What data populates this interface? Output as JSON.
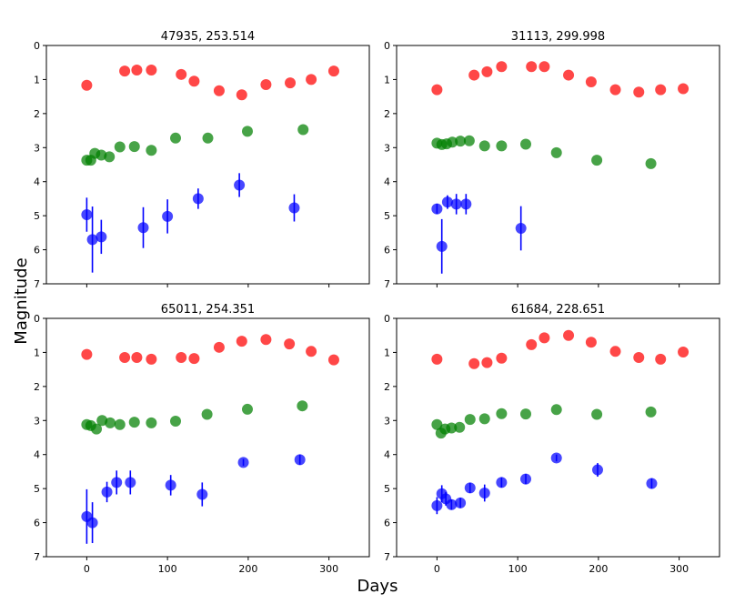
{
  "figure": {
    "xlabel": "Days",
    "ylabel": "Magnitude",
    "colors": {
      "red": "#ff0000",
      "green": "#008000",
      "blue": "#0000ff"
    }
  },
  "chart_data": [
    {
      "type": "scatter",
      "title": "47935, 253.514",
      "xlabel": "Days",
      "ylabel": "Magnitude",
      "xlim": [
        -50,
        350
      ],
      "ylim": [
        7,
        0
      ],
      "y_inverted": true,
      "xticks": [
        0,
        100,
        200,
        300
      ],
      "yticks": [
        0,
        1,
        2,
        3,
        4,
        5,
        6,
        7
      ],
      "series": [
        {
          "name": "red",
          "color": "#ff0000",
          "points": [
            [
              0,
              1.17
            ],
            [
              47,
              0.75
            ],
            [
              62,
              0.72
            ],
            [
              80,
              0.72
            ],
            [
              117,
              0.85
            ],
            [
              133,
              1.05
            ],
            [
              164,
              1.33
            ],
            [
              192,
              1.45
            ],
            [
              222,
              1.15
            ],
            [
              252,
              1.1
            ],
            [
              278,
              1.0
            ],
            [
              306,
              0.75
            ]
          ]
        },
        {
          "name": "green",
          "color": "#008000",
          "points": [
            [
              0,
              3.37
            ],
            [
              5,
              3.37
            ],
            [
              10,
              3.17
            ],
            [
              18,
              3.22
            ],
            [
              28,
              3.27
            ],
            [
              41,
              2.98
            ],
            [
              59,
              2.97
            ],
            [
              80,
              3.08
            ],
            [
              110,
              2.72
            ],
            [
              150,
              2.72
            ],
            [
              199,
              2.52
            ],
            [
              268,
              2.47
            ]
          ]
        },
        {
          "name": "blue",
          "color": "#0000ff",
          "points": [
            [
              0,
              4.97,
              0.5
            ],
            [
              7,
              5.7,
              0.97
            ],
            [
              18,
              5.62,
              0.5
            ],
            [
              70,
              5.35,
              0.6
            ],
            [
              100,
              5.02,
              0.5
            ],
            [
              138,
              4.5,
              0.3
            ],
            [
              189,
              4.1,
              0.35
            ],
            [
              257,
              4.77,
              0.4
            ]
          ]
        }
      ]
    },
    {
      "type": "scatter",
      "title": "31113, 299.998",
      "xlabel": "Days",
      "ylabel": "Magnitude",
      "xlim": [
        -50,
        350
      ],
      "ylim": [
        7,
        0
      ],
      "y_inverted": true,
      "xticks": [
        0,
        100,
        200,
        300
      ],
      "yticks": [
        0,
        1,
        2,
        3,
        4,
        5,
        6,
        7
      ],
      "series": [
        {
          "name": "red",
          "color": "#ff0000",
          "points": [
            [
              0,
              1.3
            ],
            [
              46,
              0.87
            ],
            [
              62,
              0.77
            ],
            [
              80,
              0.62
            ],
            [
              117,
              0.62
            ],
            [
              133,
              0.62
            ],
            [
              163,
              0.87
            ],
            [
              191,
              1.07
            ],
            [
              221,
              1.3
            ],
            [
              250,
              1.37
            ],
            [
              277,
              1.3
            ],
            [
              305,
              1.27
            ]
          ]
        },
        {
          "name": "green",
          "color": "#008000",
          "points": [
            [
              0,
              2.87
            ],
            [
              6,
              2.91
            ],
            [
              12,
              2.89
            ],
            [
              19,
              2.84
            ],
            [
              29,
              2.81
            ],
            [
              40,
              2.8
            ],
            [
              59,
              2.95
            ],
            [
              80,
              2.95
            ],
            [
              110,
              2.9
            ],
            [
              148,
              3.15
            ],
            [
              198,
              3.37
            ],
            [
              265,
              3.47
            ]
          ]
        },
        {
          "name": "blue",
          "color": "#0000ff",
          "points": [
            [
              0,
              4.8,
              0.15
            ],
            [
              6,
              5.9,
              0.8
            ],
            [
              13,
              4.6,
              0.2
            ],
            [
              24,
              4.66,
              0.3
            ],
            [
              36,
              4.66,
              0.3
            ],
            [
              104,
              5.37,
              0.65
            ]
          ]
        }
      ]
    },
    {
      "type": "scatter",
      "title": "65011, 254.351",
      "xlabel": "Days",
      "ylabel": "Magnitude",
      "xlim": [
        -50,
        350
      ],
      "ylim": [
        7,
        0
      ],
      "y_inverted": true,
      "xticks": [
        0,
        100,
        200,
        300
      ],
      "yticks": [
        0,
        1,
        2,
        3,
        4,
        5,
        6,
        7
      ],
      "series": [
        {
          "name": "red",
          "color": "#ff0000",
          "points": [
            [
              0,
              1.06
            ],
            [
              47,
              1.15
            ],
            [
              62,
              1.15
            ],
            [
              80,
              1.2
            ],
            [
              117,
              1.15
            ],
            [
              133,
              1.18
            ],
            [
              164,
              0.85
            ],
            [
              192,
              0.67
            ],
            [
              222,
              0.62
            ],
            [
              251,
              0.75
            ],
            [
              278,
              0.97
            ],
            [
              306,
              1.22
            ]
          ]
        },
        {
          "name": "green",
          "color": "#008000",
          "points": [
            [
              0,
              3.12
            ],
            [
              5,
              3.15
            ],
            [
              12,
              3.25
            ],
            [
              19,
              3.0
            ],
            [
              29,
              3.07
            ],
            [
              41,
              3.12
            ],
            [
              59,
              3.05
            ],
            [
              80,
              3.07
            ],
            [
              110,
              3.02
            ],
            [
              149,
              2.82
            ],
            [
              199,
              2.67
            ],
            [
              267,
              2.57
            ]
          ]
        },
        {
          "name": "blue",
          "color": "#0000ff",
          "points": [
            [
              0,
              5.82,
              0.8
            ],
            [
              7,
              6.0,
              0.6
            ],
            [
              25,
              5.1,
              0.3
            ],
            [
              37,
              4.82,
              0.35
            ],
            [
              54,
              4.82,
              0.35
            ],
            [
              104,
              4.9,
              0.3
            ],
            [
              143,
              5.17,
              0.35
            ],
            [
              194,
              4.23,
              0.1
            ],
            [
              264,
              4.15,
              0.15
            ]
          ]
        }
      ]
    },
    {
      "type": "scatter",
      "title": "61684, 228.651",
      "xlabel": "Days",
      "ylabel": "Magnitude",
      "xlim": [
        -50,
        350
      ],
      "ylim": [
        7,
        0
      ],
      "y_inverted": true,
      "xticks": [
        0,
        100,
        200,
        300
      ],
      "yticks": [
        0,
        1,
        2,
        3,
        4,
        5,
        6,
        7
      ],
      "series": [
        {
          "name": "red",
          "color": "#ff0000",
          "points": [
            [
              0,
              1.2
            ],
            [
              46,
              1.33
            ],
            [
              62,
              1.3
            ],
            [
              80,
              1.17
            ],
            [
              117,
              0.77
            ],
            [
              133,
              0.57
            ],
            [
              163,
              0.5
            ],
            [
              191,
              0.7
            ],
            [
              221,
              0.97
            ],
            [
              250,
              1.15
            ],
            [
              277,
              1.2
            ],
            [
              305,
              0.99
            ]
          ]
        },
        {
          "name": "green",
          "color": "#008000",
          "points": [
            [
              0,
              3.12
            ],
            [
              5,
              3.37
            ],
            [
              10,
              3.25
            ],
            [
              18,
              3.22
            ],
            [
              28,
              3.2
            ],
            [
              41,
              2.97
            ],
            [
              59,
              2.95
            ],
            [
              80,
              2.8
            ],
            [
              110,
              2.81
            ],
            [
              148,
              2.68
            ],
            [
              198,
              2.82
            ],
            [
              265,
              2.75
            ]
          ]
        },
        {
          "name": "blue",
          "color": "#0000ff",
          "points": [
            [
              0,
              5.5,
              0.25
            ],
            [
              6,
              5.15,
              0.25
            ],
            [
              11,
              5.3,
              0.2
            ],
            [
              18,
              5.47,
              0.15
            ],
            [
              29,
              5.42,
              0.15
            ],
            [
              41,
              4.98,
              0.15
            ],
            [
              59,
              5.13,
              0.25
            ],
            [
              80,
              4.82,
              0.15
            ],
            [
              110,
              4.72,
              0.15
            ],
            [
              148,
              4.1,
              0.1
            ],
            [
              199,
              4.45,
              0.2
            ],
            [
              266,
              4.85,
              0.15
            ]
          ]
        }
      ]
    }
  ]
}
